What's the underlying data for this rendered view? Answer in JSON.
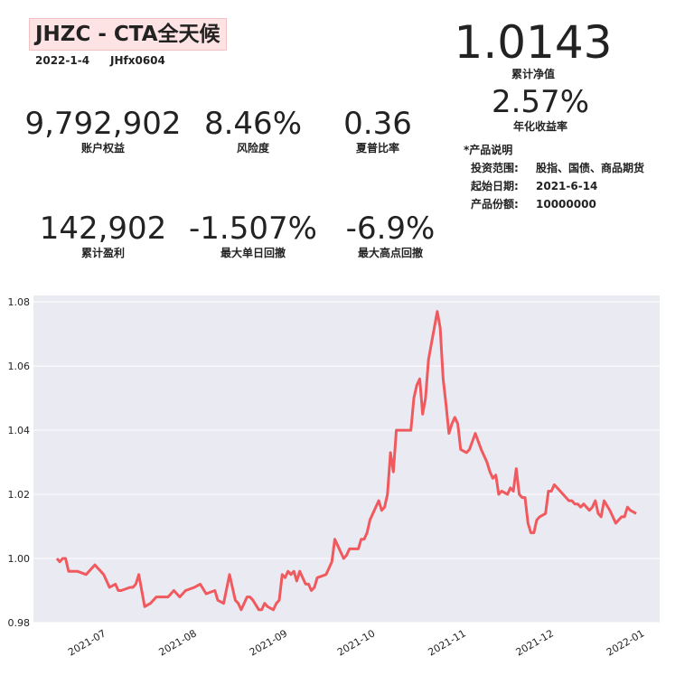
{
  "header": {
    "title": "JHZC - CTA全天候",
    "date": "2022-1-4",
    "account": "JHfx0604"
  },
  "metrics": {
    "nav": {
      "value": "1.0143",
      "label": "累计净值"
    },
    "annual_return": {
      "value": "2.57%",
      "label": "年化收益率"
    },
    "equity": {
      "value": "9,792,902",
      "label": "账户权益"
    },
    "risk": {
      "value": "8.46%",
      "label": "风险度"
    },
    "sharpe": {
      "value": "0.36",
      "label": "夏普比率"
    },
    "profit": {
      "value": "142,902",
      "label": "累计盈利"
    },
    "max_daily_dd": {
      "value": "-1.507%",
      "label": "最大单日回撤"
    },
    "max_dd": {
      "value": "-6.9%",
      "label": "最大高点回撤"
    }
  },
  "product_info": {
    "heading": "*产品说明",
    "rows": [
      {
        "key": "投资范围:",
        "value": "股指、国债、商品期货"
      },
      {
        "key": "起始日期:",
        "value": "2021-6-14"
      },
      {
        "key": "产品份额:",
        "value": "10000000"
      }
    ]
  },
  "colors": {
    "line": "#f05a5e",
    "plot_bg": "#eaeaf2",
    "grid": "#ffffff",
    "title_bg": "#fde3e3"
  },
  "chart_data": {
    "type": "line",
    "ylim": [
      0.98,
      1.082
    ],
    "xlim": [
      "2021-06-06",
      "2022-01-06"
    ],
    "ytick_labels": [
      "0.98",
      "1.00",
      "1.02",
      "1.04",
      "1.06",
      "1.08"
    ],
    "yticks": [
      0.98,
      1.0,
      1.02,
      1.04,
      1.06,
      1.08
    ],
    "xtick_labels": [
      "2021-07",
      "2021-08",
      "2021-09",
      "2021-10",
      "2021-11",
      "2021-12",
      "2022-01"
    ],
    "xticks": [
      "2021-07-01",
      "2021-08-01",
      "2021-09-01",
      "2021-10-01",
      "2021-11-01",
      "2021-12-01",
      "2022-01-01"
    ],
    "grid": true,
    "series": [
      {
        "x": [
          "2021-06-14",
          "2021-06-15",
          "2021-06-16",
          "2021-06-17",
          "2021-06-18",
          "2021-06-20",
          "2021-06-21",
          "2021-06-24",
          "2021-06-25",
          "2021-06-27",
          "2021-06-28",
          "2021-06-29",
          "2021-06-30",
          "2021-07-01",
          "2021-07-02",
          "2021-07-04",
          "2021-07-05",
          "2021-07-06",
          "2021-07-09",
          "2021-07-10",
          "2021-07-11",
          "2021-07-12",
          "2021-07-14",
          "2021-07-16",
          "2021-07-18",
          "2021-07-19",
          "2021-07-20",
          "2021-07-22",
          "2021-07-24",
          "2021-07-25",
          "2021-07-26",
          "2021-07-28",
          "2021-07-31",
          "2021-08-02",
          "2021-08-04",
          "2021-08-07",
          "2021-08-08",
          "2021-08-10",
          "2021-08-12",
          "2021-08-13",
          "2021-08-14",
          "2021-08-15",
          "2021-08-16",
          "2021-08-18",
          "2021-08-19",
          "2021-08-20",
          "2021-08-22",
          "2021-08-23",
          "2021-08-24",
          "2021-08-25",
          "2021-08-27",
          "2021-08-28",
          "2021-08-29",
          "2021-08-30",
          "2021-08-31",
          "2021-09-01",
          "2021-09-02",
          "2021-09-03",
          "2021-09-04",
          "2021-09-05",
          "2021-09-07",
          "2021-09-08",
          "2021-09-09",
          "2021-09-10",
          "2021-09-11",
          "2021-09-14",
          "2021-09-15",
          "2021-09-16",
          "2021-09-17",
          "2021-09-20",
          "2021-09-21",
          "2021-09-22",
          "2021-09-25",
          "2021-09-26",
          "2021-09-27",
          "2021-09-28",
          "2021-09-29",
          "2021-10-02",
          "2021-10-03",
          "2021-10-04",
          "2021-10-05",
          "2021-10-06",
          "2021-10-07",
          "2021-10-08",
          "2021-10-09",
          "2021-10-10",
          "2021-10-11",
          "2021-10-13",
          "2021-10-14",
          "2021-10-15",
          "2021-10-16",
          "2021-10-17",
          "2021-10-18",
          "2021-10-19",
          "2021-10-20",
          "2021-10-22",
          "2021-10-23",
          "2021-10-24",
          "2021-10-25",
          "2021-10-26",
          "2021-10-27",
          "2021-10-28",
          "2021-10-29",
          "2021-10-30",
          "2021-11-01",
          "2021-11-02",
          "2021-11-04",
          "2021-11-06",
          "2021-11-08",
          "2021-11-09",
          "2021-11-10",
          "2021-11-11",
          "2021-11-12",
          "2021-11-13",
          "2021-11-15",
          "2021-11-16",
          "2021-11-17",
          "2021-11-18",
          "2021-11-19",
          "2021-11-20",
          "2021-11-21",
          "2021-11-22",
          "2021-11-23",
          "2021-11-24",
          "2021-11-25",
          "2021-11-26",
          "2021-11-28",
          "2021-11-29",
          "2021-11-30",
          "2021-12-01",
          "2021-12-02",
          "2021-12-04",
          "2021-12-06",
          "2021-12-07",
          "2021-12-08",
          "2021-12-09",
          "2021-12-10",
          "2021-12-11",
          "2021-12-13",
          "2021-12-14",
          "2021-12-15",
          "2021-12-16",
          "2021-12-17",
          "2021-12-18",
          "2021-12-20",
          "2021-12-21",
          "2021-12-22",
          "2021-12-24",
          "2021-12-25",
          "2021-12-26",
          "2021-12-27",
          "2021-12-29"
        ],
        "values": [
          1.0,
          0.999,
          1.0,
          1.0,
          0.996,
          0.996,
          0.996,
          0.995,
          0.996,
          0.998,
          0.997,
          0.996,
          0.995,
          0.993,
          0.991,
          0.992,
          0.99,
          0.99,
          0.991,
          0.991,
          0.992,
          0.995,
          0.985,
          0.986,
          0.988,
          0.988,
          0.988,
          0.988,
          0.99,
          0.989,
          0.988,
          0.99,
          0.991,
          0.992,
          0.989,
          0.99,
          0.987,
          0.986,
          0.995,
          0.991,
          0.987,
          0.986,
          0.984,
          0.988,
          0.988,
          0.987,
          0.984,
          0.984,
          0.986,
          0.985,
          0.984,
          0.986,
          0.987,
          0.995,
          0.994,
          0.996,
          0.995,
          0.996,
          0.993,
          0.996,
          0.992,
          0.992,
          0.99,
          0.991,
          0.994,
          0.995,
          0.997,
          0.999,
          1.006,
          1.0,
          1.001,
          1.003,
          1.003,
          1.006,
          1.006,
          1.008,
          1.012,
          1.018,
          1.015,
          1.016,
          1.02,
          1.033,
          1.027,
          1.04,
          1.04,
          1.04,
          1.04,
          1.04,
          1.05,
          1.054,
          1.056,
          1.045,
          1.05,
          1.062,
          1.067,
          1.077,
          1.072,
          1.056,
          1.048,
          1.039,
          1.042,
          1.044,
          1.042,
          1.034,
          1.033,
          1.034,
          1.039,
          1.034,
          1.03,
          1.027,
          1.025,
          1.026,
          1.02,
          1.021,
          1.02,
          1.022,
          1.021,
          1.028,
          1.02,
          1.019,
          1.019,
          1.011,
          1.008,
          1.008,
          1.012,
          1.013,
          1.014,
          1.021,
          1.021,
          1.023,
          1.022,
          1.02,
          1.018,
          1.018,
          1.017,
          1.017,
          1.016,
          1.017,
          1.015,
          1.016,
          1.018,
          1.014,
          1.013,
          1.018,
          1.015,
          1.013,
          1.011,
          1.013,
          1.013,
          1.016,
          1.015,
          1.014
        ]
      }
    ]
  }
}
